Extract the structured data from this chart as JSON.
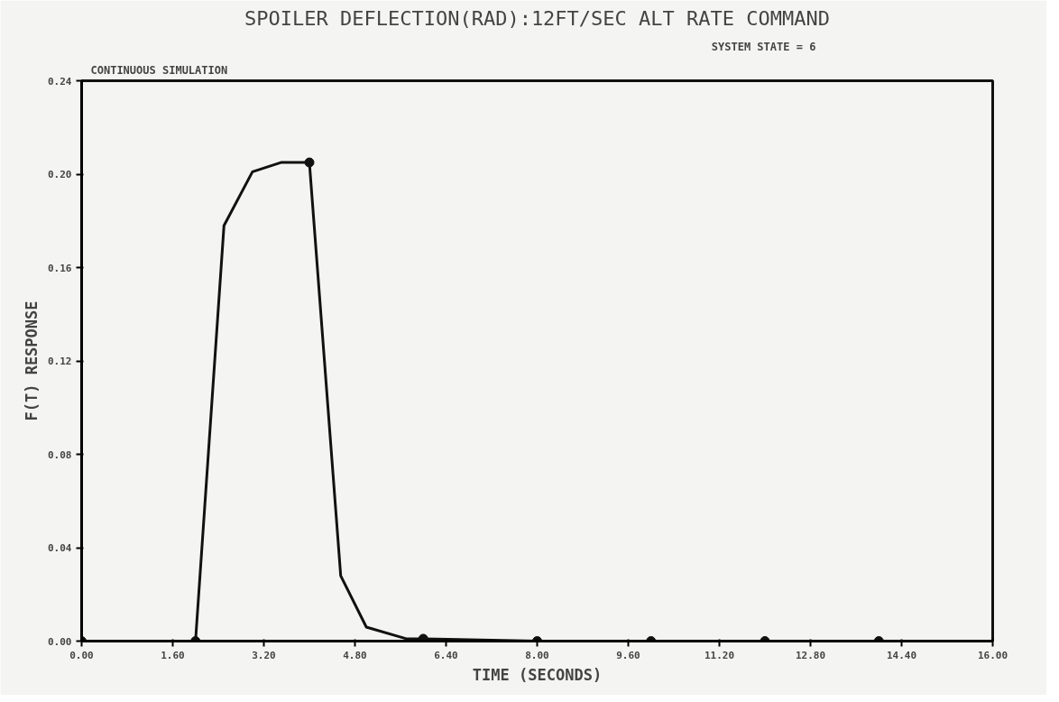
{
  "chart_data": {
    "type": "line",
    "title": "SPOILER DEFLECTION(RAD):12FT/SEC ALT RATE COMMAND",
    "annotations": [
      "CONTINUOUS SIMULATION",
      "SYSTEM STATE =      6"
    ],
    "xlabel": "TIME (SECONDS)",
    "ylabel": "F(T) RESPONSE",
    "series": [
      {
        "color": "#111111",
        "x": [
          0,
          2.0,
          2.5,
          3.0,
          3.5,
          4.0,
          4.55,
          5.0,
          5.7,
          6.0,
          8.0,
          10.0,
          12.0,
          14.0,
          16.0
        ],
        "values": [
          0,
          0,
          0.178,
          0.201,
          0.205,
          0.205,
          0.028,
          0.006,
          0.001,
          0.001,
          0,
          0,
          0,
          0,
          0
        ]
      },
      {
        "type": "scatter",
        "color": "#111111",
        "marker": "circle",
        "x": [
          0,
          2,
          4,
          6,
          8,
          10,
          12,
          14
        ],
        "values": [
          0,
          0,
          0.205,
          0.001,
          0,
          0,
          0,
          0
        ]
      }
    ],
    "xlim": [
      0,
      16
    ],
    "ylim": [
      0,
      0.24
    ],
    "xticks": [
      {
        "value": 0,
        "label": "0.00"
      },
      {
        "value": 1.6,
        "label": "1.60"
      },
      {
        "value": 3.2,
        "label": "3.20"
      },
      {
        "value": 4.8,
        "label": "4.80"
      },
      {
        "value": 6.4,
        "label": "6.40"
      },
      {
        "value": 8,
        "label": "8.00"
      },
      {
        "value": 9.6,
        "label": "9.60"
      },
      {
        "value": 11.2,
        "label": "11.20"
      },
      {
        "value": 12.8,
        "label": "12.80"
      },
      {
        "value": 14.4,
        "label": "14.40"
      },
      {
        "value": 16,
        "label": "16.00"
      }
    ],
    "yticks": [
      {
        "value": 0,
        "label": "0.00"
      },
      {
        "value": 0.04,
        "label": "0.04"
      },
      {
        "value": 0.08,
        "label": "0.08"
      },
      {
        "value": 0.12,
        "label": "0.12"
      },
      {
        "value": 0.16,
        "label": "0.16"
      },
      {
        "value": 0.2,
        "label": "0.20"
      },
      {
        "value": 0.24,
        "label": "0.24"
      }
    ],
    "grid": false
  }
}
